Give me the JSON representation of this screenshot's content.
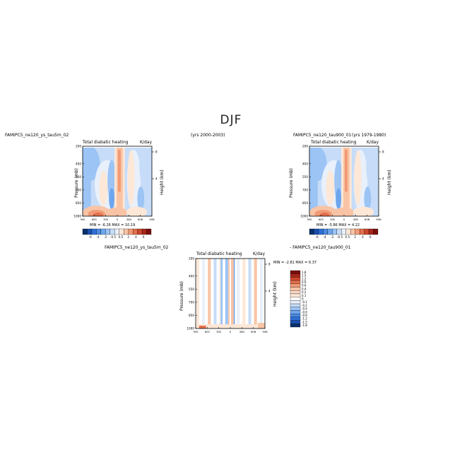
{
  "figure": {
    "title": "DJF"
  },
  "panels": [
    {
      "case_label": "FAMIPC5_ne120_ys_tau5m_02",
      "years_label": "(yrs 2000-2003)",
      "plot_title": "Total diabatic heating",
      "units": "K/day",
      "ylabel": "Pressure (mb)",
      "ylabel_right": "Height (km)",
      "stats": "MIN = -6.26   MAX = 10.19"
    },
    {
      "case_label": "FAMIPC5_ne120_tau900_01",
      "years_label": "(yrs 1979-1980)",
      "plot_title": "Total diabatic heating",
      "units": "K/day",
      "ylabel": "Pressure (mb)",
      "ylabel_right": "Height (km)",
      "stats": "MIN = -5.86   MAX = 4.22"
    },
    {
      "case_label": "FAMIPC5_ne120_ys_tau5m_02",
      "case_label_2": "- FAMIPC5_ne120_tau900_01",
      "plot_title": "Total diabatic heating",
      "units": "K/day",
      "ylabel": "Pressure (mb)",
      "ylabel_right": "Height (km)",
      "stats": "MIN = -2.81   MAX = 6.37"
    }
  ],
  "colorbar_main": {
    "labels": [
      "-6",
      "-4",
      "-2",
      "-0.5",
      "0.5",
      "2",
      "4",
      "6"
    ],
    "colors": [
      "#08306b",
      "#1a4fb0",
      "#2f6fd6",
      "#4a8be3",
      "#6ea6ee",
      "#9cc4f5",
      "#c6dcf8",
      "#e8f0fb",
      "#fde7d6",
      "#f9c4a5",
      "#f19a76",
      "#e4704c",
      "#cc472e",
      "#a8261b",
      "#7a0e0e"
    ]
  },
  "colorbar_diff": {
    "labels": [
      "1.8",
      "1.5",
      "1.2",
      "0.9",
      "0.6",
      "0.4",
      "0.2",
      "0.1",
      "0",
      "-0.1",
      "-0.2",
      "-0.4",
      "-0.6",
      "-0.9",
      "-1.2",
      "-1.5",
      "-1.8"
    ],
    "colors": [
      "#7a0e0e",
      "#a8261b",
      "#cc472e",
      "#e4704c",
      "#f19a76",
      "#f9c4a5",
      "#fbd9c4",
      "#fde7d6",
      "#ffffff",
      "#e8f0fb",
      "#c6dcf8",
      "#9cc4f5",
      "#6ea6ee",
      "#4a8be3",
      "#2f6fd6",
      "#1a4fb0",
      "#08306b"
    ]
  },
  "chart_data": [
    {
      "type": "heatmap",
      "title": "Total diabatic heating",
      "units": "K/day",
      "xlabel": "",
      "ylabel": "Pressure (mb)",
      "ylabel_right": "Height (km)",
      "x_ticks": [
        "90S",
        "60S",
        "30S",
        "0",
        "30N",
        "60N",
        "90N"
      ],
      "y_ticks": [
        200,
        400,
        550,
        700,
        850,
        1000
      ],
      "y_right_ticks": [
        8,
        4
      ],
      "xlim": [
        -90,
        90
      ],
      "ylim": [
        1000,
        200
      ],
      "min": -6.26,
      "max": 10.19
    },
    {
      "type": "heatmap",
      "title": "Total diabatic heating",
      "units": "K/day",
      "xlabel": "",
      "ylabel": "Pressure (mb)",
      "ylabel_right": "Height (km)",
      "x_ticks": [
        "90S",
        "60S",
        "30S",
        "0",
        "30N",
        "60N",
        "90N"
      ],
      "y_ticks": [
        200,
        400,
        550,
        700,
        850,
        1000
      ],
      "y_right_ticks": [
        8,
        4
      ],
      "xlim": [
        -90,
        90
      ],
      "ylim": [
        1000,
        200
      ],
      "min": -5.86,
      "max": 4.22
    },
    {
      "type": "heatmap",
      "title": "Total diabatic heating",
      "units": "K/day",
      "xlabel": "",
      "ylabel": "Pressure (mb)",
      "ylabel_right": "Height (km)",
      "x_ticks": [
        "90S",
        "60S",
        "30S",
        "0",
        "30N",
        "60N",
        "90N"
      ],
      "y_ticks": [
        200,
        400,
        550,
        700,
        850,
        1000
      ],
      "y_right_ticks": [
        8,
        4
      ],
      "xlim": [
        -90,
        90
      ],
      "ylim": [
        1000,
        200
      ],
      "min": -2.81,
      "max": 6.37
    }
  ]
}
